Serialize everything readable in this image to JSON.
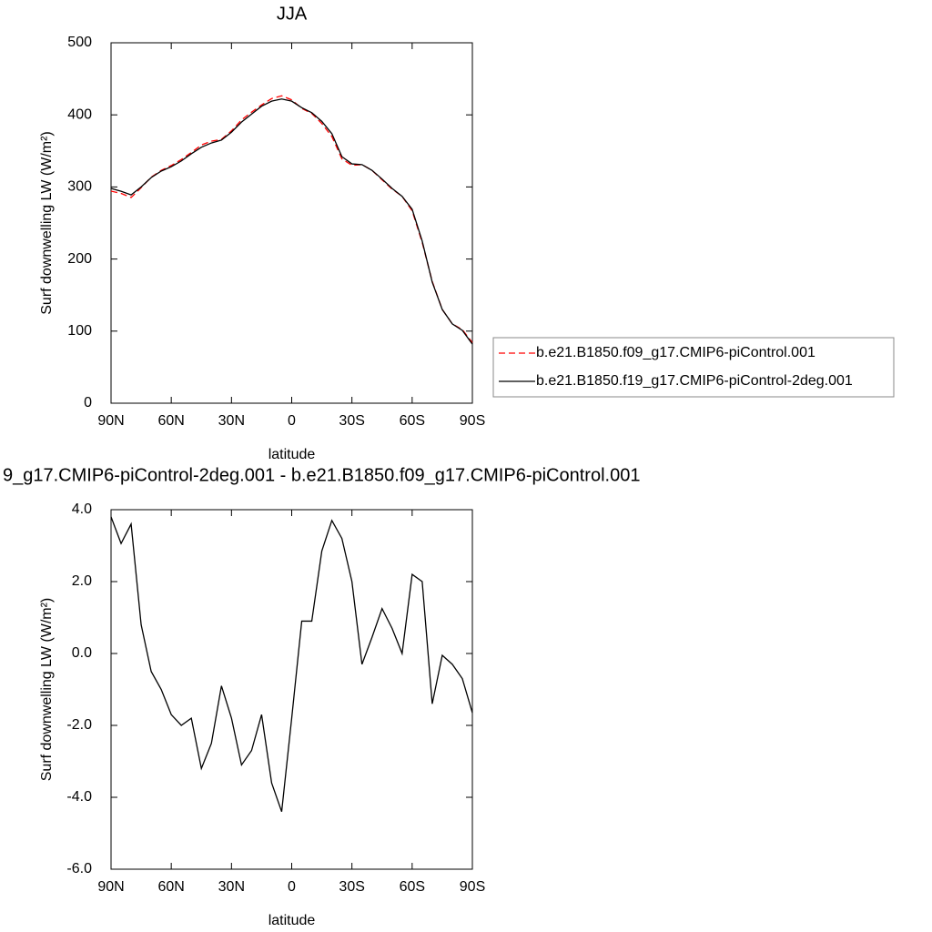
{
  "chart_data": [
    {
      "type": "line",
      "title": "JJA",
      "xlabel": "latitude",
      "ylabel": "Surf downwelling LW (W/m²)",
      "x": [
        90,
        85,
        80,
        75,
        70,
        65,
        60,
        55,
        50,
        45,
        40,
        35,
        30,
        25,
        20,
        15,
        10,
        5,
        0,
        -5,
        -10,
        -15,
        -20,
        -25,
        -30,
        -35,
        -40,
        -45,
        -50,
        -55,
        -60,
        -65,
        -70,
        -75,
        -80,
        -85,
        -90
      ],
      "series": [
        {
          "name": "b.e21.B1850.f09_g17.CMIP6-piControl.001",
          "color": "#ff0000",
          "line_style": "dashed",
          "values": [
            294.2,
            291,
            285.4,
            299,
            313.5,
            323,
            329.7,
            338,
            347.8,
            358.2,
            363.5,
            366,
            377.8,
            393,
            403.7,
            413.7,
            422.6,
            426.4,
            420.8,
            409,
            402,
            388,
            370,
            339,
            330,
            331,
            323,
            310,
            297,
            287,
            267,
            223,
            169,
            130,
            110,
            102,
            84
          ]
        },
        {
          "name": "b.e21.B1850.f19_g17.CMIP6-piControl-2deg.001",
          "color": "#000000",
          "line_style": "solid",
          "values": [
            298,
            294,
            289,
            300,
            313,
            322,
            328,
            336,
            346,
            355,
            361,
            365,
            376,
            390,
            401,
            412,
            419,
            422,
            419,
            410,
            403,
            391,
            374,
            342,
            332,
            331,
            323,
            311,
            298,
            287,
            269,
            225,
            168,
            130,
            110,
            101,
            82
          ]
        }
      ],
      "xlim": [
        90,
        -90
      ],
      "xticks": [
        {
          "value": 90,
          "label": "90N"
        },
        {
          "value": 60,
          "label": "60N"
        },
        {
          "value": 30,
          "label": "30N"
        },
        0,
        {
          "value": -30,
          "label": "30S"
        },
        {
          "value": -60,
          "label": "60S"
        },
        {
          "value": -90,
          "label": "90S"
        }
      ],
      "ylim": [
        0,
        500
      ],
      "yticks": [
        0,
        100,
        200,
        300,
        400,
        500
      ],
      "legend": "right"
    },
    {
      "type": "line",
      "title": "9_g17.CMIP6-piControl-2deg.001 - b.e21.B1850.f09_g17.CMIP6-piControl.001",
      "xlabel": "latitude",
      "ylabel": "Surf downwelling LW (W/m²)",
      "x": [
        90,
        85,
        80,
        75,
        70,
        65,
        60,
        55,
        50,
        45,
        40,
        35,
        30,
        25,
        20,
        15,
        10,
        5,
        0,
        -5,
        -10,
        -15,
        -20,
        -25,
        -30,
        -35,
        -40,
        -45,
        -50,
        -55,
        -60,
        -65,
        -70,
        -75,
        -80,
        -85,
        -90
      ],
      "series": [
        {
          "color": "#000000",
          "line_style": "solid",
          "values": [
            3.8,
            3.06,
            3.6,
            0.8,
            -0.5,
            -1.0,
            -1.7,
            -2.0,
            -1.8,
            -3.2,
            -2.5,
            -0.9,
            -1.8,
            -3.1,
            -2.7,
            -1.7,
            -3.6,
            -4.4,
            -1.8,
            0.9,
            0.9,
            2.85,
            3.7,
            3.2,
            2.0,
            -0.3,
            0.45,
            1.25,
            0.7,
            0.0,
            2.2,
            2.0,
            -1.4,
            -0.05,
            -0.3,
            -0.7,
            -1.65
          ]
        }
      ],
      "xlim": [
        90,
        -90
      ],
      "xticks": [
        {
          "value": 90,
          "label": "90N"
        },
        {
          "value": 60,
          "label": "60N"
        },
        {
          "value": 30,
          "label": "30N"
        },
        0,
        {
          "value": -30,
          "label": "30S"
        },
        {
          "value": -60,
          "label": "60S"
        },
        {
          "value": -90,
          "label": "90S"
        }
      ],
      "ylim": [
        -6,
        4
      ],
      "yticks": [
        {
          "value": -6,
          "label": "-6.0"
        },
        {
          "value": -4,
          "label": "-4.0"
        },
        {
          "value": -2,
          "label": "-2.0"
        },
        {
          "value": 0,
          "label": "0.0"
        },
        {
          "value": 2,
          "label": "2.0"
        },
        {
          "value": 4,
          "label": "4.0"
        }
      ]
    }
  ]
}
